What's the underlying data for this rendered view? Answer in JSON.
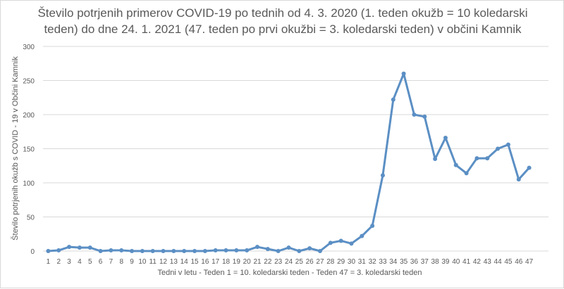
{
  "chart_data": {
    "type": "line",
    "title": [
      "Število potrjenih primerov COVID-19 po tednih od 4. 3. 2020 (1. teden okužb = 10 koledarski",
      "teden) do dne 24. 1. 2021 (47. teden po prvi okužbi = 3. koledarski teden) v občini Kamnik"
    ],
    "xlabel": "Tedni v letu - Teden 1 = 10. koledarski teden - Teden 47 =  3. koledarski teden",
    "ylabel": "Število potrjenih okužb s COVID - 19 v Občini Kamnik",
    "ylim": [
      0,
      300
    ],
    "yticks": [
      0,
      50,
      100,
      150,
      200,
      250,
      300
    ],
    "grid": true,
    "color": "#5b8fc4",
    "categories": [
      "1",
      "2",
      "3",
      "4",
      "5",
      "6",
      "7",
      "8",
      "9",
      "10",
      "11",
      "12",
      "13",
      "14",
      "15",
      "16",
      "17",
      "18",
      "19",
      "20",
      "21",
      "22",
      "23",
      "24",
      "25",
      "26",
      "27",
      "28",
      "29",
      "30",
      "31",
      "32",
      "33",
      "34",
      "35",
      "36",
      "37",
      "38",
      "39",
      "40",
      "41",
      "42",
      "43",
      "44",
      "45",
      "46",
      "47"
    ],
    "values": [
      0,
      1,
      6,
      5,
      5,
      0,
      1,
      1,
      0,
      0,
      0,
      0,
      0,
      0,
      0,
      0,
      1,
      1,
      1,
      1,
      6,
      3,
      0,
      5,
      0,
      4,
      0,
      12,
      15,
      11,
      22,
      37,
      111,
      222,
      260,
      200,
      197,
      135,
      166,
      126,
      114,
      136,
      136,
      150,
      156,
      105,
      122
    ]
  }
}
